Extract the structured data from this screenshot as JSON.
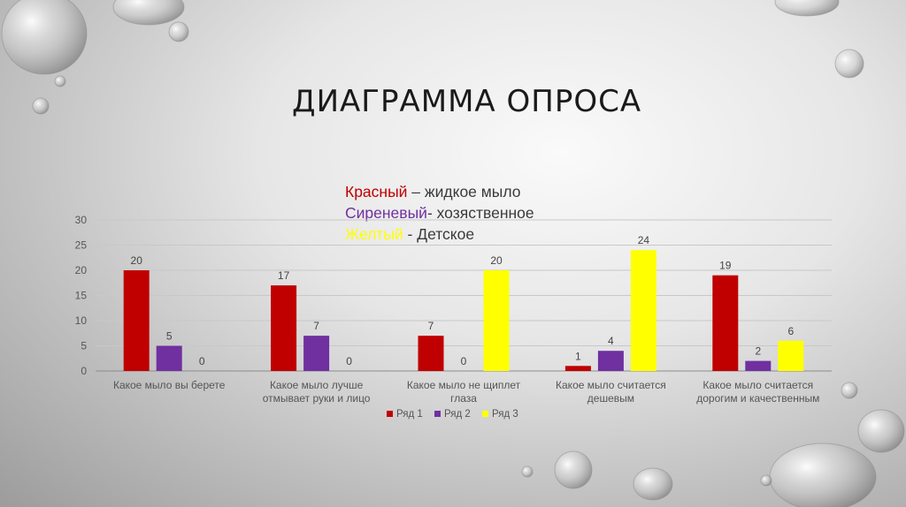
{
  "slide": {
    "title": "ДИАГРАММА ОПРОСА",
    "key_lines": [
      {
        "color_word": "Красный",
        "rest": " – жидкое мыло",
        "color": "#c00000"
      },
      {
        "color_word": "Сиреневый",
        "rest": "- хозяственное",
        "color": "#7030a0"
      },
      {
        "color_word": "Желтый",
        "rest": " - Детское",
        "color": "#ffff00"
      }
    ]
  },
  "chart_data": {
    "type": "bar",
    "categories": [
      [
        "Какое мыло вы берете"
      ],
      [
        "Какое мыло лучше",
        "отмывает руки и лицо"
      ],
      [
        "Какое мыло не щиплет",
        "глаза"
      ],
      [
        "Какое мыло считается",
        "дешевым"
      ],
      [
        "Какое мыло считается",
        "дорогим и качественным"
      ]
    ],
    "series": [
      {
        "name": "Ряд 1",
        "values": [
          20,
          17,
          7,
          1,
          19
        ],
        "color": "#c00000"
      },
      {
        "name": "Ряд 2",
        "values": [
          5,
          7,
          0,
          4,
          2
        ],
        "color": "#7030a0"
      },
      {
        "name": "Ряд 3",
        "values": [
          0,
          0,
          20,
          24,
          6
        ],
        "color": "#ffff00"
      }
    ],
    "ylim": [
      0,
      30
    ],
    "yticks": [
      "0",
      "5",
      "10",
      "15",
      "20",
      "25",
      "30"
    ],
    "data_labels": [
      [
        "20",
        "5",
        "0"
      ],
      [
        "17",
        "7",
        "0"
      ],
      [
        "7",
        "0",
        "20"
      ],
      [
        "1",
        "4",
        "24"
      ],
      [
        "19",
        "2",
        "6"
      ]
    ],
    "grid": true,
    "legend_position": "bottom",
    "title": "",
    "xlabel": "",
    "ylabel": ""
  }
}
